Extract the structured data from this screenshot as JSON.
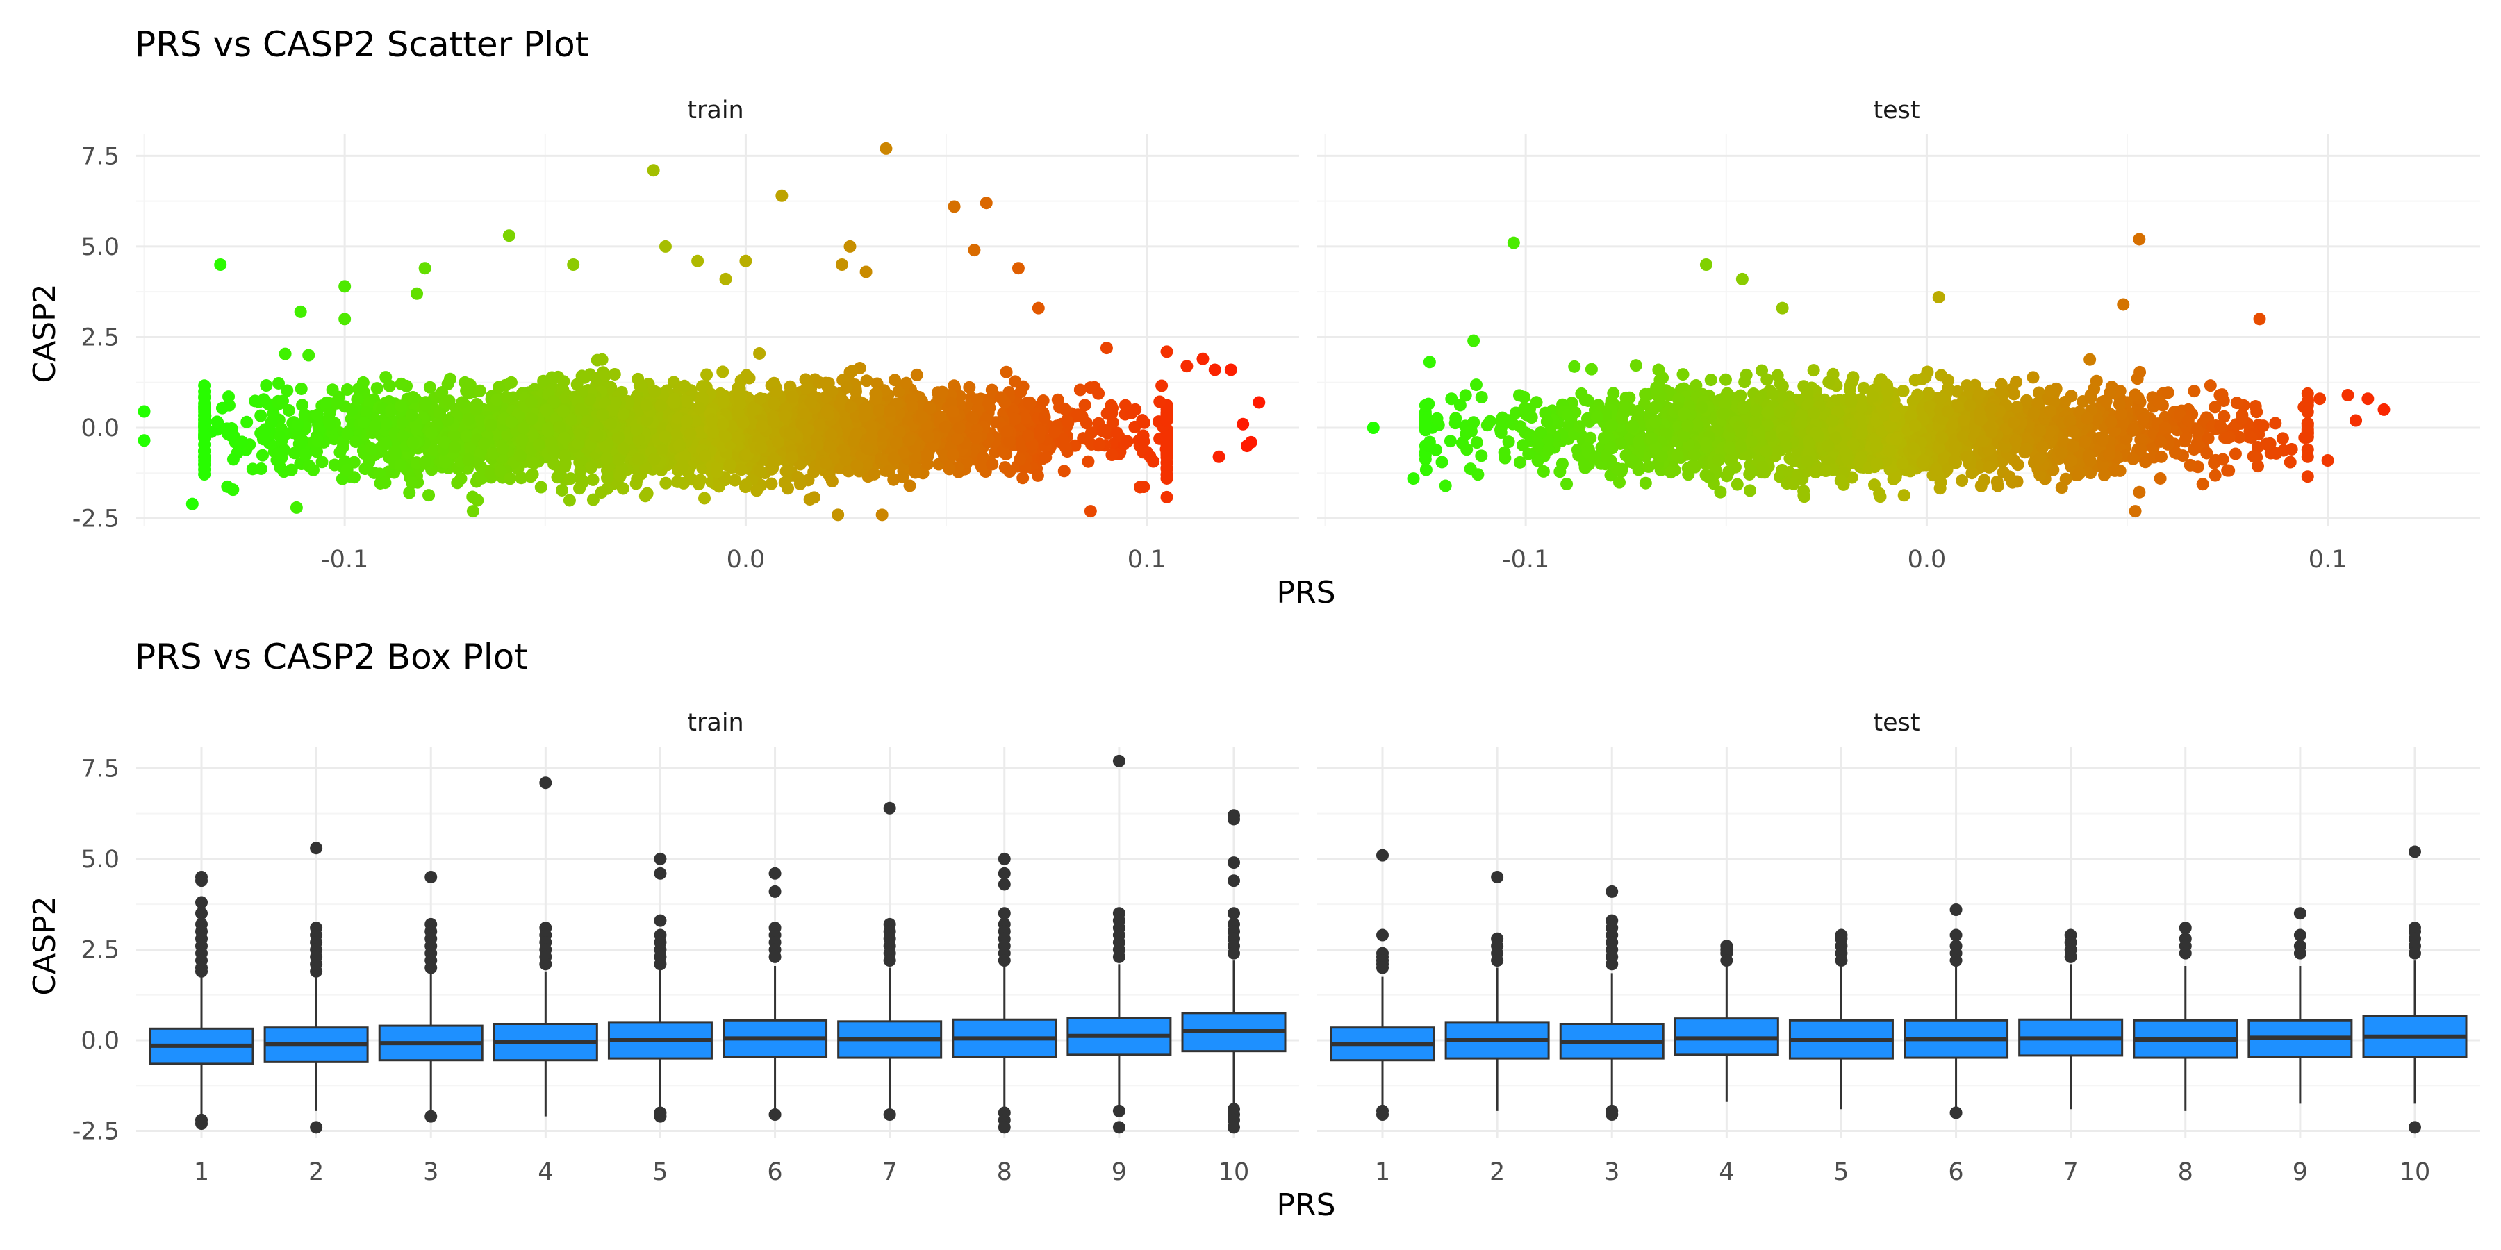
{
  "colors": {
    "grid_major": "#ebebeb",
    "grid_minor": "#f5f5f5",
    "scatter_low": "#22ff00",
    "scatter_mid": "#b4b700",
    "scatter_high": "#ff1a00",
    "box_fill": "#1e90ff",
    "box_line": "#333333",
    "outlier": "#333333"
  },
  "chart_data": [
    {
      "type": "scatter",
      "title": "PRS vs CASP2 Scatter Plot",
      "xlabel": "PRS",
      "ylabel": "CASP2",
      "ylim": [
        -2.7,
        8.1
      ],
      "yticks": [
        -2.5,
        0,
        2.5,
        5,
        7.5
      ],
      "ytick_labels": [
        "-2.5",
        "0.0",
        "2.5",
        "5.0",
        "7.5"
      ],
      "grid": true,
      "color_encoding": "PRS (green low → red high)",
      "panels": [
        {
          "label": "train",
          "xlim": [
            -0.152,
            0.138
          ],
          "xticks": [
            -0.1,
            0,
            0.1
          ],
          "xtick_labels": [
            "-0.1",
            "0.0",
            "0.1"
          ],
          "bulk": {
            "x_range": [
              -0.135,
              0.105
            ],
            "y_range": [
              -2.0,
              2.5
            ],
            "n": 3600
          },
          "points": [
            {
              "x": -0.15,
              "y": 0.45
            },
            {
              "x": -0.15,
              "y": -0.35
            },
            {
              "x": -0.131,
              "y": 4.5
            },
            {
              "x": -0.111,
              "y": 3.2
            },
            {
              "x": -0.109,
              "y": 2.0
            },
            {
              "x": -0.1,
              "y": 3.9
            },
            {
              "x": -0.1,
              "y": 3.0
            },
            {
              "x": -0.08,
              "y": 4.4
            },
            {
              "x": -0.082,
              "y": 3.7
            },
            {
              "x": -0.059,
              "y": 5.3
            },
            {
              "x": -0.043,
              "y": 4.5
            },
            {
              "x": -0.023,
              "y": 7.1
            },
            {
              "x": -0.02,
              "y": 5.0
            },
            {
              "x": -0.012,
              "y": 4.6
            },
            {
              "x": -0.005,
              "y": 4.1
            },
            {
              "x": 0.0,
              "y": 4.6
            },
            {
              "x": 0.009,
              "y": 6.4
            },
            {
              "x": 0.024,
              "y": 4.5
            },
            {
              "x": 0.026,
              "y": 5.0
            },
            {
              "x": 0.03,
              "y": 4.3
            },
            {
              "x": 0.035,
              "y": 7.7
            },
            {
              "x": 0.052,
              "y": 6.1
            },
            {
              "x": 0.06,
              "y": 6.2
            },
            {
              "x": 0.057,
              "y": 4.9
            },
            {
              "x": 0.068,
              "y": 4.4
            },
            {
              "x": 0.073,
              "y": 3.3
            },
            {
              "x": 0.086,
              "y": -2.3
            },
            {
              "x": 0.09,
              "y": 2.2
            },
            {
              "x": 0.105,
              "y": 2.1
            },
            {
              "x": 0.11,
              "y": 1.7
            },
            {
              "x": 0.114,
              "y": 1.9
            },
            {
              "x": 0.117,
              "y": 1.6
            },
            {
              "x": 0.121,
              "y": 1.6
            },
            {
              "x": 0.124,
              "y": 0.1
            },
            {
              "x": 0.125,
              "y": -0.5
            },
            {
              "x": 0.126,
              "y": -0.4
            },
            {
              "x": 0.128,
              "y": 0.7
            },
            {
              "x": 0.118,
              "y": -0.8
            },
            {
              "x": -0.138,
              "y": -2.1
            },
            {
              "x": -0.112,
              "y": -2.2
            },
            {
              "x": -0.068,
              "y": -2.3
            },
            {
              "x": 0.023,
              "y": -2.4
            },
            {
              "x": 0.034,
              "y": -2.4
            }
          ]
        },
        {
          "label": "test",
          "xlim": [
            -0.152,
            0.138
          ],
          "xticks": [
            -0.1,
            0,
            0.1
          ],
          "xtick_labels": [
            "-0.1",
            "0.0",
            "0.1"
          ],
          "bulk": {
            "x_range": [
              -0.125,
              0.095
            ],
            "y_range": [
              -1.9,
              2.2
            ],
            "n": 2200
          },
          "points": [
            {
              "x": -0.138,
              "y": 0.0
            },
            {
              "x": -0.128,
              "y": -1.4
            },
            {
              "x": -0.103,
              "y": 5.1
            },
            {
              "x": -0.113,
              "y": 2.4
            },
            {
              "x": -0.055,
              "y": 4.5
            },
            {
              "x": -0.046,
              "y": 4.1
            },
            {
              "x": -0.036,
              "y": 3.3
            },
            {
              "x": 0.003,
              "y": 3.6
            },
            {
              "x": 0.049,
              "y": 3.4
            },
            {
              "x": 0.053,
              "y": 5.2
            },
            {
              "x": 0.083,
              "y": 3.0
            },
            {
              "x": 0.11,
              "y": 0.8
            },
            {
              "x": 0.114,
              "y": 0.5
            },
            {
              "x": 0.105,
              "y": 0.9
            },
            {
              "x": 0.1,
              "y": -0.9
            },
            {
              "x": -0.12,
              "y": -1.6
            },
            {
              "x": 0.052,
              "y": -2.3
            },
            {
              "x": 0.098,
              "y": 0.8
            },
            {
              "x": 0.107,
              "y": 0.2
            },
            {
              "x": 0.095,
              "y": -0.6
            }
          ]
        }
      ]
    },
    {
      "type": "box",
      "title": "PRS vs CASP2 Box Plot",
      "xlabel": "PRS",
      "ylabel": "CASP2",
      "ylim": [
        -2.7,
        8.1
      ],
      "yticks": [
        -2.5,
        0,
        2.5,
        5,
        7.5
      ],
      "ytick_labels": [
        "-2.5",
        "0.0",
        "2.5",
        "5.0",
        "7.5"
      ],
      "grid": true,
      "panels": [
        {
          "label": "train",
          "categories": [
            "1",
            "2",
            "3",
            "4",
            "5",
            "6",
            "7",
            "8",
            "9",
            "10"
          ],
          "boxes": [
            {
              "q1": -0.65,
              "median": -0.15,
              "q3": 0.32,
              "lower": -2.05,
              "upper": 1.75,
              "outliers": [
                4.5,
                4.4,
                3.8,
                3.5,
                3.2,
                3.0,
                2.8,
                2.6,
                2.4,
                2.2,
                2.0,
                1.9,
                -2.2,
                -2.3
              ]
            },
            {
              "q1": -0.6,
              "median": -0.1,
              "q3": 0.35,
              "lower": -1.95,
              "upper": 1.8,
              "outliers": [
                5.3,
                3.1,
                2.9,
                2.7,
                2.5,
                2.3,
                2.1,
                1.9,
                -2.4
              ]
            },
            {
              "q1": -0.55,
              "median": -0.08,
              "q3": 0.4,
              "lower": -1.95,
              "upper": 1.85,
              "outliers": [
                4.5,
                3.2,
                3.0,
                2.8,
                2.6,
                2.4,
                2.2,
                2.0,
                -2.1
              ]
            },
            {
              "q1": -0.55,
              "median": -0.05,
              "q3": 0.45,
              "lower": -2.1,
              "upper": 1.9,
              "outliers": [
                7.1,
                3.1,
                2.9,
                2.7,
                2.5,
                2.3,
                2.1
              ]
            },
            {
              "q1": -0.5,
              "median": 0.0,
              "q3": 0.5,
              "lower": -1.9,
              "upper": 1.95,
              "outliers": [
                5.0,
                4.6,
                3.3,
                2.9,
                2.7,
                2.5,
                2.3,
                2.1,
                -2.0,
                -2.1
              ]
            },
            {
              "q1": -0.45,
              "median": 0.05,
              "q3": 0.55,
              "lower": -1.95,
              "upper": 2.05,
              "outliers": [
                4.6,
                4.1,
                3.1,
                2.9,
                2.7,
                2.5,
                2.3,
                -2.05
              ]
            },
            {
              "q1": -0.48,
              "median": 0.03,
              "q3": 0.52,
              "lower": -1.95,
              "upper": 2.0,
              "outliers": [
                6.4,
                3.2,
                3.0,
                2.8,
                2.6,
                2.4,
                2.2,
                -2.05
              ]
            },
            {
              "q1": -0.45,
              "median": 0.05,
              "q3": 0.57,
              "lower": -1.9,
              "upper": 2.05,
              "outliers": [
                5.0,
                4.6,
                4.3,
                3.5,
                3.2,
                3.0,
                2.8,
                2.6,
                2.4,
                2.2,
                -2.0,
                -2.2,
                -2.4
              ]
            },
            {
              "q1": -0.4,
              "median": 0.12,
              "q3": 0.62,
              "lower": -1.85,
              "upper": 2.1,
              "outliers": [
                7.7,
                3.5,
                3.3,
                3.1,
                2.9,
                2.7,
                2.5,
                2.3,
                -1.95,
                -2.4
              ]
            },
            {
              "q1": -0.3,
              "median": 0.25,
              "q3": 0.75,
              "lower": -1.75,
              "upper": 2.2,
              "outliers": [
                6.2,
                6.1,
                4.9,
                4.4,
                3.5,
                3.2,
                3.0,
                2.8,
                2.6,
                2.4,
                -1.9,
                -2.05,
                -2.2,
                -2.4
              ]
            }
          ]
        },
        {
          "label": "test",
          "categories": [
            "1",
            "2",
            "3",
            "4",
            "5",
            "6",
            "7",
            "8",
            "9",
            "10"
          ],
          "boxes": [
            {
              "q1": -0.55,
              "median": -0.1,
              "q3": 0.35,
              "lower": -1.9,
              "upper": 1.75,
              "outliers": [
                5.1,
                2.9,
                2.4,
                2.3,
                2.2,
                2.1,
                2.0,
                -1.95,
                -2.05
              ]
            },
            {
              "q1": -0.5,
              "median": 0.0,
              "q3": 0.5,
              "lower": -1.95,
              "upper": 2.0,
              "outliers": [
                4.5,
                2.8,
                2.6,
                2.4,
                2.2
              ]
            },
            {
              "q1": -0.5,
              "median": -0.05,
              "q3": 0.45,
              "lower": -1.9,
              "upper": 1.85,
              "outliers": [
                4.1,
                3.3,
                3.1,
                2.9,
                2.7,
                2.5,
                2.3,
                2.1,
                -1.95,
                -2.05
              ]
            },
            {
              "q1": -0.4,
              "median": 0.05,
              "q3": 0.6,
              "lower": -1.7,
              "upper": 2.05,
              "outliers": [
                2.6,
                2.5,
                2.4,
                2.2
              ]
            },
            {
              "q1": -0.5,
              "median": 0.0,
              "q3": 0.55,
              "lower": -1.9,
              "upper": 2.1,
              "outliers": [
                2.9,
                2.8,
                2.6,
                2.4,
                2.2
              ]
            },
            {
              "q1": -0.48,
              "median": 0.03,
              "q3": 0.55,
              "lower": -1.85,
              "upper": 2.05,
              "outliers": [
                3.6,
                2.9,
                2.6,
                2.4,
                2.2,
                -2.0
              ]
            },
            {
              "q1": -0.42,
              "median": 0.05,
              "q3": 0.57,
              "lower": -1.9,
              "upper": 2.1,
              "outliers": [
                2.9,
                2.7,
                2.5,
                2.3
              ]
            },
            {
              "q1": -0.48,
              "median": 0.02,
              "q3": 0.55,
              "lower": -1.95,
              "upper": 2.05,
              "outliers": [
                3.1,
                2.8,
                2.6,
                2.4
              ]
            },
            {
              "q1": -0.45,
              "median": 0.07,
              "q3": 0.55,
              "lower": -1.75,
              "upper": 2.05,
              "outliers": [
                3.5,
                2.9,
                2.6,
                2.4
              ]
            },
            {
              "q1": -0.45,
              "median": 0.1,
              "q3": 0.67,
              "lower": -1.75,
              "upper": 2.2,
              "outliers": [
                5.2,
                3.1,
                3.0,
                2.8,
                2.6,
                2.4,
                -2.4
              ]
            }
          ]
        }
      ]
    }
  ]
}
